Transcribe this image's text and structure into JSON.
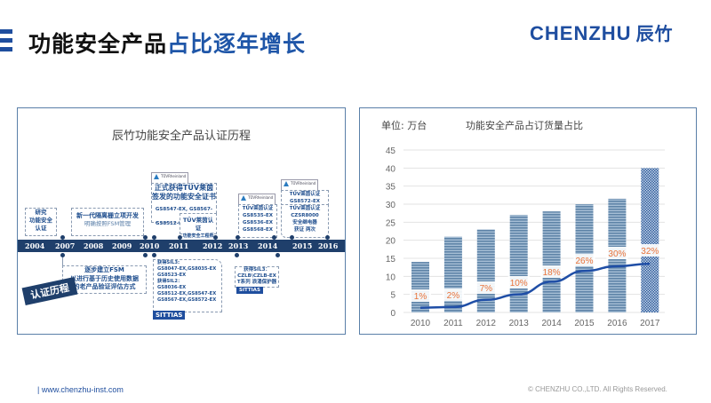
{
  "header": {
    "title_part1": "功能安全产品",
    "title_part2": "占比逐年增长",
    "logo_en": "CHENZHU",
    "logo_cn": "辰竹"
  },
  "timeline": {
    "title": "辰竹功能安全产品认证历程",
    "years": [
      "2004",
      "2007",
      "2008",
      "2009",
      "2010",
      "2011",
      "2012",
      "2013",
      "2014",
      "2015",
      "2016"
    ],
    "stamp": "认证历程",
    "tuv_logo": "TÜVRheinland",
    "above": {
      "research": "研究\n功能安全\n认证",
      "new_gen": "新一代隔离栅立项开发",
      "new_gen_sub": "明确按照FSM管理",
      "tuv_cert_title": "正式获得TÜV莱茵\n签发的功能安全证书",
      "tuv_cert_models": "GS8547-EX, GS8567-EX\nGS8512-EX, GS8523-EX",
      "tuv_engineer": "TÜV莱茵认证",
      "tuv_engineer_sub": "功能安全工程师",
      "tuv_2013": "TÜV莱茵认证\nGS8535-EX\nGS8536-EX\nGS8568-EX",
      "tuv_2015_a": "TÜV莱茵认证\nGS8572-EX",
      "tuv_2015_b": "TÜV莱茵认证\nCZSR8000\n安全继电器\n获证 两次"
    },
    "below": {
      "fsm": "逐步建立FSM\n以进行基于历史使用数据\n的老产品验证评估方式",
      "sil_2010": "获得SIL3:\nGS8047-EX,GS8035-EX\nGS8523-EX\n获得SIL2：\nGS8036-EX\nGS8512-EX,GS8547-EX\nGS8567-EX,GS8572-EX",
      "sil_2010_badge": "SITTIAS",
      "sil_2013": "获得SIL3：\nCZLB\\CZLB-EX\nT系列 浪涌保护器",
      "sil_2013_badge": "SITTIAS"
    }
  },
  "chart_data": {
    "type": "bar",
    "title": "功能安全产品占订货量占比",
    "unit_label": "单位: 万台",
    "categories": [
      "2010",
      "2011",
      "2012",
      "2013",
      "2014",
      "2015",
      "2016",
      "2017"
    ],
    "series": [
      {
        "name": "订货量",
        "type": "bar",
        "values": [
          14,
          21,
          23,
          27,
          28,
          30,
          31.5,
          40
        ]
      },
      {
        "name": "功能安全产品",
        "type": "line",
        "values": [
          1.3,
          1.5,
          3.5,
          5,
          8.5,
          11.5,
          12.8,
          13.5
        ]
      }
    ],
    "data_labels": [
      "1%",
      "2%",
      "7%",
      "10%",
      "18%",
      "26%",
      "30%",
      "32%"
    ],
    "yticks": [
      "0",
      "5",
      "10",
      "15",
      "20",
      "25",
      "30",
      "35",
      "40",
      "45"
    ],
    "ylim": [
      0,
      45
    ],
    "xlabel": "",
    "ylabel": "",
    "grid": true,
    "colors": {
      "bar": "#6f8fb0",
      "bar_highlight": "#1f4e8e",
      "line": "#1f4ea6",
      "label": "#e8733a"
    }
  },
  "footer": {
    "url": "| www.chenzhu-inst.com",
    "copyright": "© CHENZHU CO.,LTD. All Rights Reserved."
  }
}
